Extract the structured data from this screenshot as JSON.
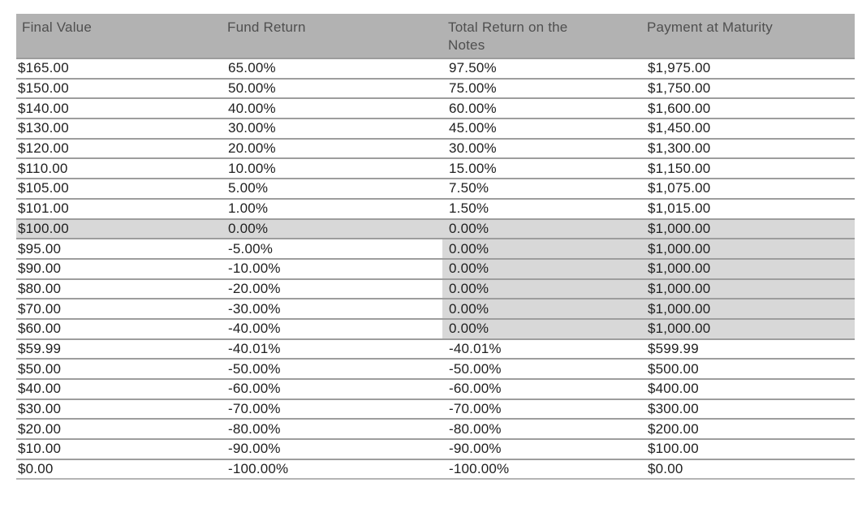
{
  "table": {
    "columns": [
      "Final Value",
      "Fund Return",
      "Total Return on the Notes",
      "Payment at Maturity"
    ],
    "rows": [
      {
        "cells": [
          "$165.00",
          "65.00%",
          "97.50%",
          "$1,975.00"
        ],
        "shade": "none"
      },
      {
        "cells": [
          "$150.00",
          "50.00%",
          "75.00%",
          "$1,750.00"
        ],
        "shade": "none"
      },
      {
        "cells": [
          "$140.00",
          "40.00%",
          "60.00%",
          "$1,600.00"
        ],
        "shade": "none"
      },
      {
        "cells": [
          "$130.00",
          "30.00%",
          "45.00%",
          "$1,450.00"
        ],
        "shade": "none"
      },
      {
        "cells": [
          "$120.00",
          "20.00%",
          "30.00%",
          "$1,300.00"
        ],
        "shade": "none"
      },
      {
        "cells": [
          "$110.00",
          "10.00%",
          "15.00%",
          "$1,150.00"
        ],
        "shade": "none"
      },
      {
        "cells": [
          "$105.00",
          "5.00%",
          "7.50%",
          "$1,075.00"
        ],
        "shade": "none"
      },
      {
        "cells": [
          "$101.00",
          "1.00%",
          "1.50%",
          "$1,015.00"
        ],
        "shade": "none"
      },
      {
        "cells": [
          "$100.00",
          "0.00%",
          "0.00%",
          "$1,000.00"
        ],
        "shade": "row"
      },
      {
        "cells": [
          "$95.00",
          "-5.00%",
          "0.00%",
          "$1,000.00"
        ],
        "shade": "cells"
      },
      {
        "cells": [
          "$90.00",
          "-10.00%",
          "0.00%",
          "$1,000.00"
        ],
        "shade": "cells"
      },
      {
        "cells": [
          "$80.00",
          "-20.00%",
          "0.00%",
          "$1,000.00"
        ],
        "shade": "cells"
      },
      {
        "cells": [
          "$70.00",
          "-30.00%",
          "0.00%",
          "$1,000.00"
        ],
        "shade": "cells"
      },
      {
        "cells": [
          "$60.00",
          "-40.00%",
          "0.00%",
          "$1,000.00"
        ],
        "shade": "cells"
      },
      {
        "cells": [
          "$59.99",
          "-40.01%",
          "-40.01%",
          "$599.99"
        ],
        "shade": "none"
      },
      {
        "cells": [
          "$50.00",
          "-50.00%",
          "-50.00%",
          "$500.00"
        ],
        "shade": "none"
      },
      {
        "cells": [
          "$40.00",
          "-60.00%",
          "-60.00%",
          "$400.00"
        ],
        "shade": "none"
      },
      {
        "cells": [
          "$30.00",
          "-70.00%",
          "-70.00%",
          "$300.00"
        ],
        "shade": "none"
      },
      {
        "cells": [
          "$20.00",
          "-80.00%",
          "-80.00%",
          "$200.00"
        ],
        "shade": "none"
      },
      {
        "cells": [
          "$10.00",
          "-90.00%",
          "-90.00%",
          "$100.00"
        ],
        "shade": "none"
      },
      {
        "cells": [
          "$0.00",
          "-100.00%",
          "-100.00%",
          "$0.00"
        ],
        "shade": "none"
      }
    ]
  },
  "colors": {
    "header_bg": "#b2b2b2",
    "header_text": "#4f4f4f",
    "body_text": "#212121",
    "shaded_cell_bg": "#d8d8d8",
    "row_border": "#9d9d9d"
  }
}
